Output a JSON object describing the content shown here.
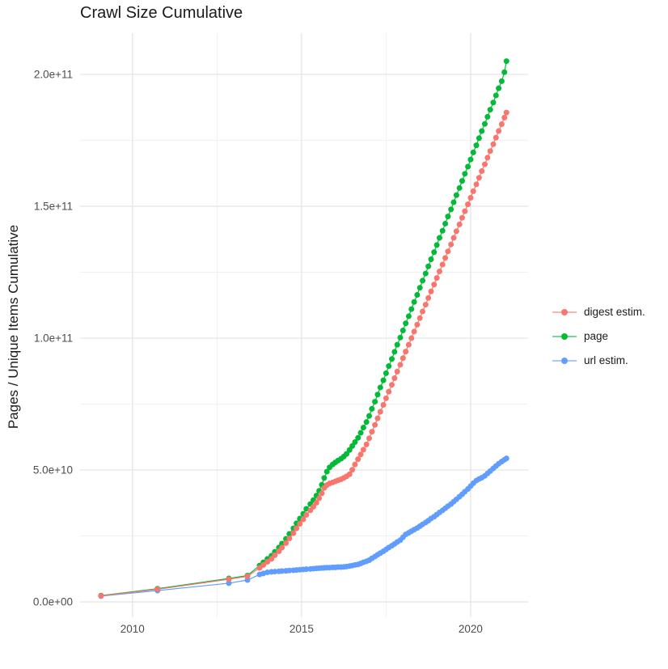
{
  "title": "Crawl Size Cumulative",
  "y_axis_title": "Pages / Unique Items Cumulative",
  "legend": {
    "items": [
      {
        "label": "digest estim.",
        "color": "#F8766D"
      },
      {
        "label": "page",
        "color": "#00BA38"
      },
      {
        "label": "url estim.",
        "color": "#619CFF"
      }
    ]
  },
  "colors": {
    "digest": "#F8766D",
    "page": "#00BA38",
    "url": "#619CFF",
    "grid_major": "#e5e5e5",
    "grid_minor": "#f0f0f0",
    "tick_text": "#4d4d4d",
    "title_text": "#1a1a1a",
    "panel_bg": "#ffffff"
  },
  "chart_data": {
    "type": "line",
    "style": "points+lines",
    "title": "Crawl Size Cumulative",
    "xlabel": "",
    "ylabel": "Pages / Unique Items Cumulative",
    "y_unit": "items, values stored as billions (1e9)",
    "grid": "major+minor, light gray on white",
    "legend_position": "right",
    "x_axis": {
      "range": [
        2008.45,
        2021.7
      ],
      "major_ticks": [
        2010,
        2015,
        2020
      ],
      "tick_labels": [
        "2010",
        "2015",
        "2020"
      ],
      "minor_ticks": [
        2012.5,
        2017.5
      ]
    },
    "y_axis": {
      "range_e9": [
        -5.8,
        215.6
      ],
      "major_ticks_e9": [
        0,
        50,
        100,
        150,
        200
      ],
      "tick_labels": [
        "0.0e+00",
        "5.0e+10",
        "1.0e+11",
        "1.5e+11",
        "2.0e+11"
      ],
      "minor_ticks_e9": [
        25,
        75,
        125,
        175
      ]
    },
    "series": [
      {
        "name": "digest estim.",
        "color": "#F8766D",
        "points_year_billion": [
          [
            2009.07,
            2.3
          ],
          [
            2010.74,
            4.8
          ],
          [
            2012.85,
            8.6
          ],
          [
            2013.4,
            9.7
          ],
          [
            2013.76,
            12.9
          ],
          [
            2013.87,
            14.0
          ],
          [
            2013.99,
            15.2
          ],
          [
            2014.11,
            16.3
          ],
          [
            2014.21,
            17.7
          ],
          [
            2014.33,
            19.2
          ],
          [
            2014.42,
            20.6
          ],
          [
            2014.54,
            22.3
          ],
          [
            2014.64,
            24.1
          ],
          [
            2014.76,
            26.1
          ],
          [
            2014.85,
            27.9
          ],
          [
            2014.95,
            29.6
          ],
          [
            2015.05,
            31.3
          ],
          [
            2015.14,
            33.0
          ],
          [
            2015.26,
            34.7
          ],
          [
            2015.35,
            36.1
          ],
          [
            2015.44,
            37.6
          ],
          [
            2015.52,
            39.3
          ],
          [
            2015.6,
            41.2
          ],
          [
            2015.67,
            43.2
          ],
          [
            2015.75,
            44.3
          ],
          [
            2015.83,
            44.9
          ],
          [
            2015.92,
            45.3
          ],
          [
            2016.0,
            45.7
          ],
          [
            2016.08,
            46.1
          ],
          [
            2016.17,
            46.5
          ],
          [
            2016.25,
            47.0
          ],
          [
            2016.33,
            47.6
          ],
          [
            2016.42,
            48.4
          ],
          [
            2016.5,
            50.1
          ],
          [
            2016.58,
            52.1
          ],
          [
            2016.67,
            54.1
          ],
          [
            2016.75,
            55.9
          ],
          [
            2016.83,
            57.7
          ],
          [
            2016.92,
            59.7
          ],
          [
            2017.0,
            62.0
          ],
          [
            2017.08,
            64.5
          ],
          [
            2017.17,
            67.1
          ],
          [
            2017.25,
            69.6
          ],
          [
            2017.33,
            72.1
          ],
          [
            2017.42,
            74.7
          ],
          [
            2017.5,
            77.2
          ],
          [
            2017.58,
            79.7
          ],
          [
            2017.67,
            82.3
          ],
          [
            2017.75,
            84.8
          ],
          [
            2017.83,
            87.3
          ],
          [
            2017.92,
            89.9
          ],
          [
            2018.0,
            92.4
          ],
          [
            2018.08,
            94.9
          ],
          [
            2018.17,
            97.5
          ],
          [
            2018.25,
            100.0
          ],
          [
            2018.33,
            102.5
          ],
          [
            2018.42,
            105.1
          ],
          [
            2018.5,
            107.6
          ],
          [
            2018.58,
            110.1
          ],
          [
            2018.67,
            112.7
          ],
          [
            2018.75,
            115.2
          ],
          [
            2018.83,
            117.7
          ],
          [
            2018.92,
            120.3
          ],
          [
            2019.0,
            122.8
          ],
          [
            2019.08,
            125.3
          ],
          [
            2019.17,
            127.9
          ],
          [
            2019.25,
            130.4
          ],
          [
            2019.33,
            132.9
          ],
          [
            2019.42,
            135.5
          ],
          [
            2019.5,
            138.0
          ],
          [
            2019.58,
            140.5
          ],
          [
            2019.67,
            143.1
          ],
          [
            2019.75,
            145.6
          ],
          [
            2019.83,
            148.1
          ],
          [
            2019.92,
            150.7
          ],
          [
            2020.0,
            153.2
          ],
          [
            2020.08,
            155.7
          ],
          [
            2020.17,
            158.3
          ],
          [
            2020.25,
            160.8
          ],
          [
            2020.33,
            163.3
          ],
          [
            2020.42,
            165.9
          ],
          [
            2020.5,
            168.4
          ],
          [
            2020.58,
            170.9
          ],
          [
            2020.67,
            173.5
          ],
          [
            2020.75,
            176.0
          ],
          [
            2020.83,
            178.5
          ],
          [
            2020.92,
            181.1
          ],
          [
            2021.0,
            183.6
          ],
          [
            2021.06,
            185.5
          ]
        ]
      },
      {
        "name": "page",
        "color": "#00BA38",
        "points_year_billion": [
          [
            2009.07,
            2.4
          ],
          [
            2010.74,
            5.0
          ],
          [
            2012.85,
            8.9
          ],
          [
            2013.4,
            10.0
          ],
          [
            2013.76,
            13.8
          ],
          [
            2013.87,
            15.0
          ],
          [
            2013.99,
            16.3
          ],
          [
            2014.11,
            17.5
          ],
          [
            2014.21,
            19.0
          ],
          [
            2014.33,
            20.6
          ],
          [
            2014.42,
            22.1
          ],
          [
            2014.54,
            23.9
          ],
          [
            2014.64,
            25.8
          ],
          [
            2014.76,
            27.9
          ],
          [
            2014.85,
            29.8
          ],
          [
            2014.95,
            31.6
          ],
          [
            2015.05,
            33.4
          ],
          [
            2015.14,
            35.3
          ],
          [
            2015.26,
            37.1
          ],
          [
            2015.35,
            38.6
          ],
          [
            2015.44,
            40.3
          ],
          [
            2015.52,
            42.1
          ],
          [
            2015.6,
            44.4
          ],
          [
            2015.67,
            47.0
          ],
          [
            2015.75,
            49.4
          ],
          [
            2015.83,
            51.0
          ],
          [
            2015.92,
            52.1
          ],
          [
            2016.0,
            52.9
          ],
          [
            2016.08,
            53.6
          ],
          [
            2016.17,
            54.3
          ],
          [
            2016.25,
            55.1
          ],
          [
            2016.33,
            56.1
          ],
          [
            2016.42,
            57.6
          ],
          [
            2016.5,
            59.1
          ],
          [
            2016.58,
            60.6
          ],
          [
            2016.67,
            62.2
          ],
          [
            2016.75,
            64.1
          ],
          [
            2016.83,
            66.1
          ],
          [
            2016.92,
            68.2
          ],
          [
            2017.0,
            70.5
          ],
          [
            2017.08,
            73.2
          ],
          [
            2017.17,
            75.9
          ],
          [
            2017.25,
            78.6
          ],
          [
            2017.33,
            81.3
          ],
          [
            2017.42,
            84.0
          ],
          [
            2017.5,
            86.7
          ],
          [
            2017.58,
            89.4
          ],
          [
            2017.67,
            92.1
          ],
          [
            2017.75,
            94.8
          ],
          [
            2017.83,
            97.5
          ],
          [
            2017.92,
            100.2
          ],
          [
            2018.0,
            102.9
          ],
          [
            2018.08,
            105.6
          ],
          [
            2018.17,
            108.3
          ],
          [
            2018.25,
            111.0
          ],
          [
            2018.33,
            113.7
          ],
          [
            2018.42,
            116.4
          ],
          [
            2018.5,
            119.1
          ],
          [
            2018.58,
            121.8
          ],
          [
            2018.67,
            124.5
          ],
          [
            2018.75,
            127.2
          ],
          [
            2018.83,
            129.9
          ],
          [
            2018.92,
            132.6
          ],
          [
            2019.0,
            135.3
          ],
          [
            2019.08,
            138.0
          ],
          [
            2019.17,
            140.7
          ],
          [
            2019.25,
            143.4
          ],
          [
            2019.33,
            146.1
          ],
          [
            2019.42,
            148.8
          ],
          [
            2019.5,
            151.5
          ],
          [
            2019.58,
            154.2
          ],
          [
            2019.67,
            156.9
          ],
          [
            2019.75,
            159.6
          ],
          [
            2019.83,
            162.3
          ],
          [
            2019.92,
            165.0
          ],
          [
            2020.0,
            167.7
          ],
          [
            2020.08,
            170.4
          ],
          [
            2020.17,
            173.1
          ],
          [
            2020.25,
            175.8
          ],
          [
            2020.33,
            178.5
          ],
          [
            2020.42,
            181.2
          ],
          [
            2020.5,
            183.9
          ],
          [
            2020.58,
            186.6
          ],
          [
            2020.67,
            189.3
          ],
          [
            2020.75,
            192.0
          ],
          [
            2020.83,
            194.7
          ],
          [
            2020.92,
            197.4
          ],
          [
            2021.0,
            200.8
          ],
          [
            2021.06,
            205.0
          ]
        ]
      },
      {
        "name": "url estim.",
        "color": "#619CFF",
        "points_year_billion": [
          [
            2009.07,
            2.2
          ],
          [
            2010.74,
            4.3
          ],
          [
            2012.85,
            7.1
          ],
          [
            2013.4,
            8.3
          ],
          [
            2013.76,
            10.4
          ],
          [
            2013.87,
            10.8
          ],
          [
            2013.99,
            11.2
          ],
          [
            2014.11,
            11.4
          ],
          [
            2014.21,
            11.5
          ],
          [
            2014.33,
            11.6
          ],
          [
            2014.42,
            11.7
          ],
          [
            2014.54,
            11.8
          ],
          [
            2014.64,
            11.9
          ],
          [
            2014.76,
            12.0
          ],
          [
            2014.85,
            12.1
          ],
          [
            2014.95,
            12.2
          ],
          [
            2015.05,
            12.3
          ],
          [
            2015.14,
            12.4
          ],
          [
            2015.26,
            12.5
          ],
          [
            2015.35,
            12.6
          ],
          [
            2015.44,
            12.7
          ],
          [
            2015.52,
            12.8
          ],
          [
            2015.6,
            12.85
          ],
          [
            2015.67,
            12.9
          ],
          [
            2015.75,
            13.0
          ],
          [
            2015.83,
            13.0
          ],
          [
            2015.92,
            13.1
          ],
          [
            2016.0,
            13.1
          ],
          [
            2016.08,
            13.2
          ],
          [
            2016.17,
            13.2
          ],
          [
            2016.25,
            13.3
          ],
          [
            2016.33,
            13.4
          ],
          [
            2016.42,
            13.6
          ],
          [
            2016.5,
            13.8
          ],
          [
            2016.58,
            14.0
          ],
          [
            2016.67,
            14.2
          ],
          [
            2016.75,
            14.6
          ],
          [
            2016.83,
            15.0
          ],
          [
            2016.92,
            15.4
          ],
          [
            2017.0,
            15.8
          ],
          [
            2017.08,
            16.5
          ],
          [
            2017.17,
            17.2
          ],
          [
            2017.25,
            17.9
          ],
          [
            2017.33,
            18.5
          ],
          [
            2017.42,
            19.2
          ],
          [
            2017.5,
            19.9
          ],
          [
            2017.58,
            20.6
          ],
          [
            2017.67,
            21.3
          ],
          [
            2017.75,
            22.0
          ],
          [
            2017.83,
            22.7
          ],
          [
            2017.92,
            23.4
          ],
          [
            2018.0,
            24.5
          ],
          [
            2018.08,
            25.6
          ],
          [
            2018.17,
            26.2
          ],
          [
            2018.25,
            26.8
          ],
          [
            2018.33,
            27.4
          ],
          [
            2018.42,
            28.0
          ],
          [
            2018.5,
            28.7
          ],
          [
            2018.58,
            29.4
          ],
          [
            2018.67,
            30.1
          ],
          [
            2018.75,
            30.8
          ],
          [
            2018.83,
            31.6
          ],
          [
            2018.92,
            32.3
          ],
          [
            2019.0,
            33.1
          ],
          [
            2019.08,
            33.9
          ],
          [
            2019.17,
            34.7
          ],
          [
            2019.25,
            35.5
          ],
          [
            2019.33,
            36.3
          ],
          [
            2019.42,
            37.1
          ],
          [
            2019.5,
            38.0
          ],
          [
            2019.58,
            38.9
          ],
          [
            2019.67,
            39.9
          ],
          [
            2019.75,
            40.8
          ],
          [
            2019.83,
            41.8
          ],
          [
            2019.92,
            42.8
          ],
          [
            2020.0,
            43.9
          ],
          [
            2020.08,
            45.0
          ],
          [
            2020.17,
            46.0
          ],
          [
            2020.25,
            46.6
          ],
          [
            2020.33,
            47.1
          ],
          [
            2020.42,
            47.8
          ],
          [
            2020.5,
            48.7
          ],
          [
            2020.58,
            49.6
          ],
          [
            2020.67,
            50.6
          ],
          [
            2020.75,
            51.5
          ],
          [
            2020.83,
            52.4
          ],
          [
            2020.92,
            53.2
          ],
          [
            2021.0,
            53.9
          ],
          [
            2021.06,
            54.4
          ]
        ]
      }
    ]
  }
}
